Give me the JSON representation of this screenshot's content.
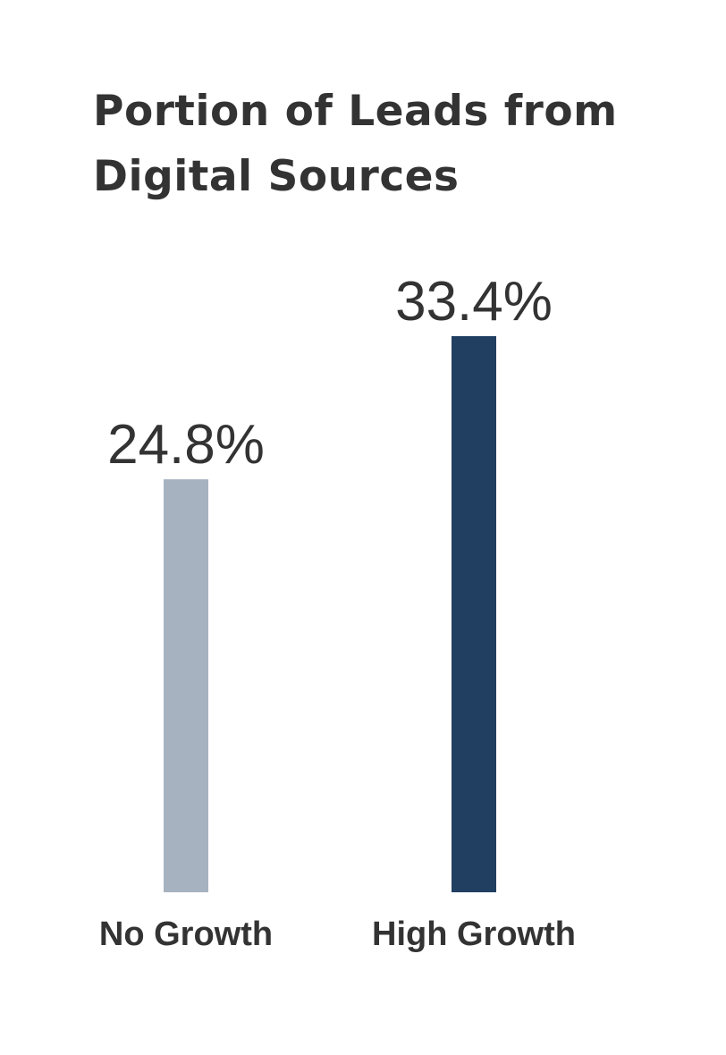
{
  "chart_data": {
    "type": "bar",
    "title": "Portion of Leads from Digital Sources",
    "categories": [
      "No Growth",
      "High Growth"
    ],
    "values": [
      24.8,
      33.4
    ],
    "value_labels": [
      "24.8%",
      "33.4%"
    ],
    "unit": "%",
    "colors": [
      "#a6b2c0",
      "#213f61"
    ],
    "ylim": [
      0,
      40
    ],
    "xlabel": "",
    "ylabel": "",
    "grid": false
  }
}
